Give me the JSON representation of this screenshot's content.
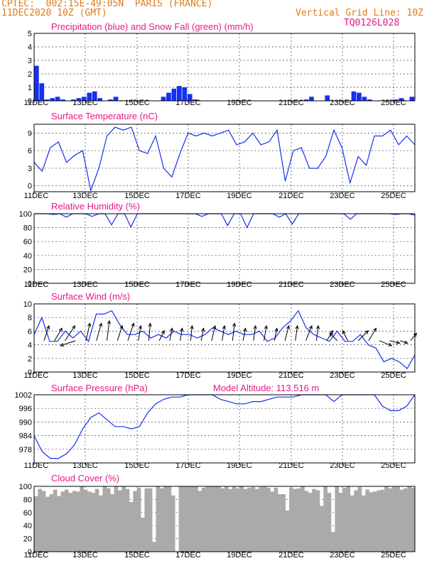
{
  "header": {
    "line1": "CPTEC:  002:15E-49:05N  PARIS (FRANCE)",
    "line2": "11DEC2020 10Z (GMT)",
    "grid_note": "Vertical Grid Line: 10Z",
    "code": "TQ0126L028"
  },
  "chart_data": [
    {
      "type": "bar",
      "title": "Precipitation (blue) and Snow Fall (green) (mm/h)",
      "x_start": "2020-12-11T10Z",
      "step_hours": 6,
      "ylim": [
        0,
        5
      ],
      "yticks": [
        0,
        1,
        2,
        3,
        4,
        5
      ],
      "xticks": [
        "11DEC",
        "13DEC",
        "15DEC",
        "17DEC",
        "19DEC",
        "21DEC",
        "23DEC",
        "25DEC"
      ],
      "series": [
        {
          "name": "Precipitation",
          "color": "#1530f0",
          "values": [
            2.6,
            1.3,
            0.1,
            0.2,
            0.3,
            0.1,
            0.0,
            0.1,
            0.2,
            0.3,
            0.6,
            0.7,
            0.2,
            0.0,
            0.1,
            0.3,
            0.0,
            0.0,
            0.0,
            0.0,
            0.0,
            0.0,
            0.0,
            0.0,
            0.3,
            0.6,
            0.9,
            1.1,
            1.0,
            0.5,
            0.1,
            0.0,
            0.0,
            0.0,
            0.0,
            0.0,
            0.0,
            0.0,
            0.0,
            0.0,
            0.0,
            0.0,
            0.0,
            0.0,
            0.0,
            0.0,
            0.0,
            0.0,
            0.0,
            0.0,
            0.0,
            0.1,
            0.3,
            0.0,
            0.0,
            0.4,
            0.0,
            0.0,
            0.0,
            0.0,
            0.7,
            0.6,
            0.3,
            0.1,
            0.0,
            0.0,
            0.0,
            0.0,
            0.1,
            0.2,
            0.0,
            0.3
          ]
        },
        {
          "name": "Snow Fall",
          "color": "#00a000",
          "values": [
            0,
            0,
            0,
            0,
            0,
            0,
            0,
            0,
            0,
            0,
            0,
            0,
            0,
            0,
            0,
            0,
            0.05,
            0.05,
            0.05,
            0.05,
            0,
            0,
            0,
            0,
            0,
            0,
            0,
            0,
            0,
            0,
            0,
            0,
            0,
            0,
            0,
            0,
            0,
            0,
            0,
            0,
            0,
            0,
            0,
            0,
            0,
            0,
            0,
            0,
            0,
            0,
            0,
            0,
            0,
            0,
            0,
            0,
            0,
            0,
            0,
            0,
            0,
            0,
            0,
            0,
            0,
            0,
            0,
            0,
            0,
            0,
            0,
            0
          ]
        }
      ]
    },
    {
      "type": "line",
      "title": "Surface Temperature (nC)",
      "ylim": [
        -1,
        10.5
      ],
      "yticks": [
        0,
        3,
        6,
        9
      ],
      "xticks": [
        "11DEC",
        "13DEC",
        "15DEC",
        "17DEC",
        "19DEC",
        "21DEC",
        "23DEC",
        "25DEC"
      ],
      "series": [
        {
          "name": "Temperature",
          "color": "#1530f0",
          "values": [
            4.0,
            2.5,
            6.5,
            7.5,
            4.0,
            5.2,
            6.0,
            -0.8,
            3.0,
            8.5,
            10.0,
            9.5,
            10.0,
            6.0,
            5.5,
            8.5,
            3.0,
            1.5,
            5.5,
            9.0,
            8.5,
            9.0,
            8.5,
            9.0,
            9.5,
            7.0,
            7.5,
            9.0,
            7.0,
            7.5,
            9.5,
            0.8,
            6.0,
            6.5,
            3.0,
            3.0,
            5.0,
            9.5,
            6.5,
            0.5,
            5.0,
            3.5,
            8.5,
            8.5,
            9.5,
            7.0,
            8.5,
            7.0
          ]
        }
      ]
    },
    {
      "type": "line",
      "title": "Relative Humidity (%)",
      "ylim": [
        0,
        100
      ],
      "yticks": [
        0,
        20,
        40,
        60,
        80,
        100
      ],
      "xticks": [
        "11DEC",
        "13DEC",
        "15DEC",
        "17DEC",
        "19DEC",
        "21DEC",
        "23DEC",
        "25DEC"
      ],
      "series": [
        {
          "name": "Humidity",
          "color": "#1530f0",
          "values": [
            100,
            100,
            100,
            99,
            100,
            95,
            100,
            100,
            100,
            96,
            100,
            100,
            84,
            100,
            100,
            81,
            100,
            100,
            100,
            100,
            100,
            100,
            100,
            100,
            100,
            100,
            96,
            100,
            100,
            100,
            83,
            100,
            100,
            80,
            100,
            100,
            100,
            100,
            95,
            100,
            85,
            100,
            100,
            100,
            100,
            100,
            100,
            100,
            100,
            92,
            100,
            100,
            100,
            100,
            100,
            100,
            99,
            100,
            100,
            98
          ]
        }
      ]
    },
    {
      "type": "line",
      "title": "Surface Wind (m/s)",
      "ylim": [
        0,
        10
      ],
      "yticks": [
        0,
        2,
        4,
        6,
        8,
        10
      ],
      "xticks": [
        "11DEC",
        "13DEC",
        "15DEC",
        "17DEC",
        "19DEC",
        "21DEC",
        "23DEC",
        "25DEC"
      ],
      "series": [
        {
          "name": "Wind speed",
          "color": "#1530f0",
          "values": [
            5.5,
            8.0,
            4.5,
            4.5,
            6.0,
            5.0,
            6.0,
            4.5,
            8.5,
            8.5,
            9.0,
            7.0,
            5.5,
            5.5,
            6.0,
            5.0,
            5.5,
            5.0,
            6.0,
            5.5,
            5.5,
            5.0,
            5.5,
            6.5,
            6.0,
            5.5,
            6.0,
            5.5,
            5.5,
            6.0,
            4.5,
            5.0,
            6.5,
            7.5,
            9.0,
            6.5,
            5.5,
            5.0,
            4.5,
            6.0,
            4.5,
            4.5,
            5.5,
            4.0,
            3.5,
            1.5,
            2.0,
            1.5,
            0.5,
            2.5
          ]
        }
      ],
      "arrows": [
        {
          "u": 1,
          "v": 3
        },
        {
          "u": 1.5,
          "v": 2.5
        },
        {
          "u": 2,
          "v": 3
        },
        {
          "u": -3,
          "v": -1
        },
        {
          "u": 0.8,
          "v": 3.5
        },
        {
          "u": 1,
          "v": 3.5
        },
        {
          "u": 0.5,
          "v": 4
        },
        {
          "u": 1,
          "v": 3
        },
        {
          "u": 1.2,
          "v": 3.5
        },
        {
          "u": 0.5,
          "v": 3
        },
        {
          "u": 0.3,
          "v": 3.5
        },
        {
          "u": 1,
          "v": 2
        },
        {
          "u": 0.5,
          "v": 2.5
        },
        {
          "u": 0.4,
          "v": 2.5
        },
        {
          "u": 0.3,
          "v": 3
        },
        {
          "u": 0.5,
          "v": 2.5
        },
        {
          "u": 0.7,
          "v": 3
        },
        {
          "u": 0.5,
          "v": 3
        },
        {
          "u": 0.4,
          "v": 3.5
        },
        {
          "u": 0.5,
          "v": 2.5
        },
        {
          "u": 0.4,
          "v": 3
        },
        {
          "u": 0.5,
          "v": 3
        },
        {
          "u": 0.5,
          "v": 2.5
        },
        {
          "u": 0.8,
          "v": 3
        },
        {
          "u": 0.4,
          "v": 3
        },
        {
          "u": 1.2,
          "v": 3
        },
        {
          "u": 0.4,
          "v": 3
        },
        {
          "u": 1.2,
          "v": 2
        },
        {
          "u": -1.5,
          "v": 1.5
        },
        {
          "u": -1,
          "v": 2
        },
        {
          "u": 2,
          "v": 2
        },
        {
          "u": 1.5,
          "v": 2.5
        },
        {
          "u": 2.5,
          "v": -1
        },
        {
          "u": 2,
          "v": -0.5
        },
        {
          "u": 1.5,
          "v": -0.5
        },
        {
          "u": 1.2,
          "v": 1.5
        }
      ]
    },
    {
      "type": "line",
      "title": "Surface Pressure (hPa)",
      "annotation": "Model Altitude: 113.516 m",
      "ylim": [
        972,
        1002
      ],
      "yticks": [
        978,
        984,
        990,
        996,
        1002
      ],
      "xticks": [
        "11DEC",
        "13DEC",
        "15DEC",
        "17DEC",
        "19DEC",
        "21DEC",
        "23DEC",
        "25DEC"
      ],
      "series": [
        {
          "name": "Pressure",
          "color": "#1530f0",
          "values": [
            984,
            977,
            974,
            974,
            976,
            980,
            987,
            992,
            994,
            991,
            988,
            988,
            987,
            988,
            994,
            998,
            1000,
            1001,
            1001,
            1002,
            1002,
            1002,
            1002,
            1000,
            999,
            998,
            998,
            999,
            999,
            1000,
            1001,
            1001,
            1001,
            1002,
            1003,
            1003,
            1002,
            999,
            1003,
            1003,
            1003,
            1003,
            1002,
            997,
            995,
            995,
            997,
            1002
          ]
        }
      ]
    },
    {
      "type": "area",
      "title": "Cloud Cover (%)",
      "ylim": [
        0,
        100
      ],
      "yticks": [
        0,
        20,
        40,
        60,
        80,
        100
      ],
      "xticks": [
        "11DEC",
        "13DEC",
        "15DEC",
        "17DEC",
        "19DEC",
        "21DEC",
        "23DEC",
        "25DEC"
      ],
      "series": [
        {
          "name": "Cloud cover",
          "color": "#aaaaaa",
          "values": [
            85,
            96,
            93,
            84,
            88,
            95,
            85,
            92,
            95,
            90,
            93,
            92,
            100,
            95,
            92,
            90,
            96,
            86,
            100,
            97,
            88,
            100,
            94,
            100,
            96,
            76,
            93,
            98,
            52,
            97,
            97,
            15,
            100,
            97,
            100,
            100,
            86,
            0,
            100,
            100,
            100,
            100,
            100,
            93,
            98,
            100,
            100,
            100,
            100,
            97,
            100,
            96,
            100,
            97,
            100,
            96,
            98,
            99,
            96,
            99,
            100,
            98,
            92,
            98,
            88,
            88,
            63,
            98,
            96,
            97,
            100,
            93,
            90,
            96,
            94,
            70,
            100,
            90,
            30,
            100,
            90,
            98,
            100,
            86,
            94,
            99,
            86,
            95,
            91,
            92,
            94,
            95,
            100,
            97,
            99,
            100,
            95,
            97,
            100,
            98
          ]
        }
      ]
    }
  ]
}
